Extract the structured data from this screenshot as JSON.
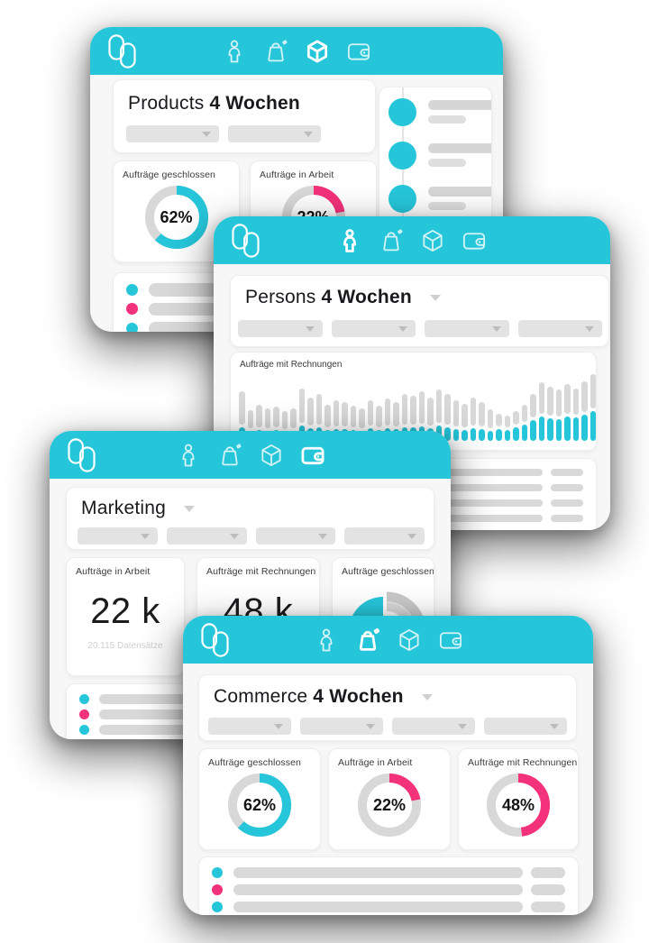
{
  "colors": {
    "cyan": "#26c6da",
    "pink": "#f4317b",
    "skeleton_gray": "#d9d9d9",
    "track_gray": "#d8d8d8"
  },
  "nav": {
    "icons": [
      "person",
      "bag",
      "cube",
      "wallet"
    ]
  },
  "cards": {
    "products": {
      "title": "Products",
      "period": "4 Wochen",
      "active_nav": "cube",
      "filter_count": 2,
      "metrics": [
        {
          "label": "Aufträge geschlossen",
          "value": "62%",
          "pct": 62,
          "color": "#26c6da"
        },
        {
          "label": "Aufträge in Arbeit",
          "value": "22%",
          "pct": 22,
          "color": "#f4317b"
        }
      ],
      "timeline_items": 6
    },
    "persons": {
      "title": "Persons",
      "period": "4 Wochen",
      "active_nav": "person",
      "filter_count": 4,
      "chart": {
        "type": "stacked-bar",
        "label": "Aufträge mit Rechnungen",
        "bars_total_cyan": [
          [
            55,
            15
          ],
          [
            34,
            11
          ],
          [
            40,
            12
          ],
          [
            36,
            11
          ],
          [
            38,
            12
          ],
          [
            33,
            10
          ],
          [
            36,
            11
          ],
          [
            58,
            17
          ],
          [
            48,
            14
          ],
          [
            52,
            15
          ],
          [
            40,
            12
          ],
          [
            45,
            13
          ],
          [
            43,
            13
          ],
          [
            39,
            12
          ],
          [
            36,
            11
          ],
          [
            45,
            14
          ],
          [
            39,
            12
          ],
          [
            47,
            14
          ],
          [
            43,
            13
          ],
          [
            52,
            15
          ],
          [
            50,
            15
          ],
          [
            55,
            16
          ],
          [
            48,
            14
          ],
          [
            57,
            17
          ],
          [
            52,
            15
          ],
          [
            45,
            13
          ],
          [
            41,
            12
          ],
          [
            48,
            14
          ],
          [
            43,
            13
          ],
          [
            35,
            11
          ],
          [
            30,
            13
          ],
          [
            28,
            12
          ],
          [
            33,
            15
          ],
          [
            40,
            18
          ],
          [
            52,
            23
          ],
          [
            65,
            27
          ],
          [
            60,
            25
          ],
          [
            57,
            24
          ],
          [
            63,
            27
          ],
          [
            58,
            26
          ],
          [
            66,
            29
          ],
          [
            74,
            33
          ]
        ]
      }
    },
    "marketing": {
      "title": "Marketing",
      "active_nav": "wallet",
      "filter_count": 4,
      "stats": [
        {
          "label": "Aufträge in Arbeit",
          "value": "22 k",
          "sub": "20.115 Datensätze"
        },
        {
          "label": "Aufträge mit Rechnungen",
          "value": "48 k",
          "sub": ""
        },
        {
          "label": "Aufträge geschlossen",
          "value": "",
          "sub": ""
        }
      ]
    },
    "commerce": {
      "title": "Commerce",
      "period": "4 Wochen",
      "active_nav": "bag",
      "filter_count": 4,
      "metrics": [
        {
          "label": "Aufträge geschlossen",
          "value": "62%",
          "pct": 62,
          "color": "#26c6da"
        },
        {
          "label": "Aufträge in Arbeit",
          "value": "22%",
          "pct": 22,
          "color": "#f4317b"
        },
        {
          "label": "Aufträge mit Rechnungen",
          "value": "48%",
          "pct": 48,
          "color": "#f4317b"
        }
      ]
    }
  },
  "skeletons": {
    "products": {
      "rows": 4,
      "bullets": [
        "#26c6da",
        "#f4317b",
        "#26c6da",
        "#f4317b"
      ],
      "pill": false
    },
    "persons": {
      "rows": 4,
      "bullets": null,
      "pill": true
    },
    "marketing": {
      "rows": 4,
      "bullets": [
        "#26c6da",
        "#f4317b",
        "#26c6da",
        "#f4317b"
      ],
      "pill": false
    },
    "commerce": {
      "rows": 4,
      "bullets": [
        "#26c6da",
        "#f4317b",
        "#26c6da",
        "#f4317b"
      ],
      "pill": true
    }
  }
}
